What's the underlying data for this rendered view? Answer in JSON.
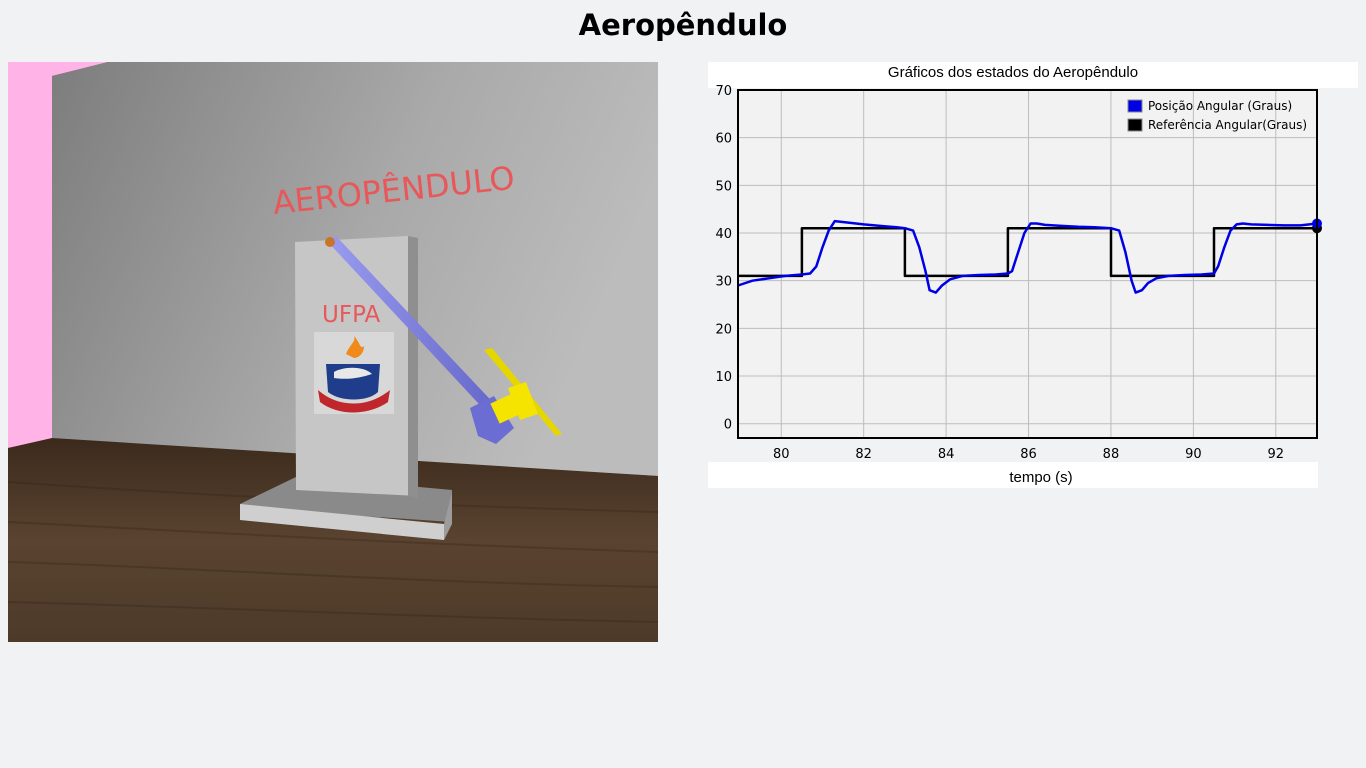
{
  "page": {
    "title": "Aeropêndulo"
  },
  "scene": {
    "wall_text": "AEROPÊNDULO",
    "panel_text": "UFPA",
    "colors": {
      "wall_left": "#ffb3e6",
      "wall_back": "#9a9a9a",
      "floor": "#4a3626",
      "panel": "#c4c4c4",
      "arm": "#7d7fe0",
      "propeller": "#f4e400",
      "text": "#e8585a"
    }
  },
  "chart_data": {
    "type": "line",
    "title": "Gráficos dos estados do Aeropêndulo",
    "xlabel": "tempo (s)",
    "ylabel": "",
    "xlim": [
      78.95,
      93
    ],
    "ylim": [
      -3,
      70
    ],
    "xticks": [
      80,
      82,
      84,
      86,
      88,
      90,
      92
    ],
    "yticks": [
      0,
      10,
      20,
      30,
      40,
      50,
      60,
      70
    ],
    "grid": true,
    "legend": "top-right",
    "series": [
      {
        "name": "Posição Angular (Graus)",
        "color": "#0000e6",
        "x": [
          78.95,
          79.3,
          79.7,
          80.1,
          80.5,
          80.7,
          80.85,
          81.0,
          81.15,
          81.3,
          81.6,
          82.0,
          82.4,
          82.8,
          83.0,
          83.2,
          83.35,
          83.5,
          83.6,
          83.75,
          83.9,
          84.1,
          84.4,
          84.8,
          85.2,
          85.5,
          85.6,
          85.75,
          85.9,
          86.05,
          86.2,
          86.4,
          86.8,
          87.2,
          87.6,
          88.0,
          88.2,
          88.35,
          88.5,
          88.6,
          88.75,
          88.9,
          89.1,
          89.4,
          89.8,
          90.2,
          90.5,
          90.6,
          90.75,
          90.9,
          91.05,
          91.2,
          91.4,
          91.8,
          92.2,
          92.6,
          93.0
        ],
        "y": [
          29,
          30,
          30.5,
          31,
          31.3,
          31.5,
          33,
          37,
          40.5,
          42.5,
          42.2,
          41.8,
          41.5,
          41.2,
          41,
          40.5,
          37,
          32,
          28,
          27.5,
          29,
          30.3,
          31,
          31.2,
          31.3,
          31.5,
          32,
          36,
          40,
          42,
          42,
          41.7,
          41.5,
          41.3,
          41.2,
          41,
          40.5,
          36,
          30,
          27.5,
          28,
          29.5,
          30.5,
          31,
          31.2,
          31.3,
          31.5,
          33,
          37,
          40.5,
          41.8,
          42,
          41.8,
          41.7,
          41.6,
          41.6,
          42
        ]
      },
      {
        "name": "Referência Angular(Graus)",
        "color": "#000000",
        "x": [
          78.95,
          80.5,
          80.5,
          83.0,
          83.0,
          85.5,
          85.5,
          88.0,
          88.0,
          90.5,
          90.5,
          93.0
        ],
        "y": [
          31,
          31,
          41,
          41,
          31,
          31,
          41,
          41,
          31,
          31,
          41,
          41
        ]
      }
    ]
  }
}
